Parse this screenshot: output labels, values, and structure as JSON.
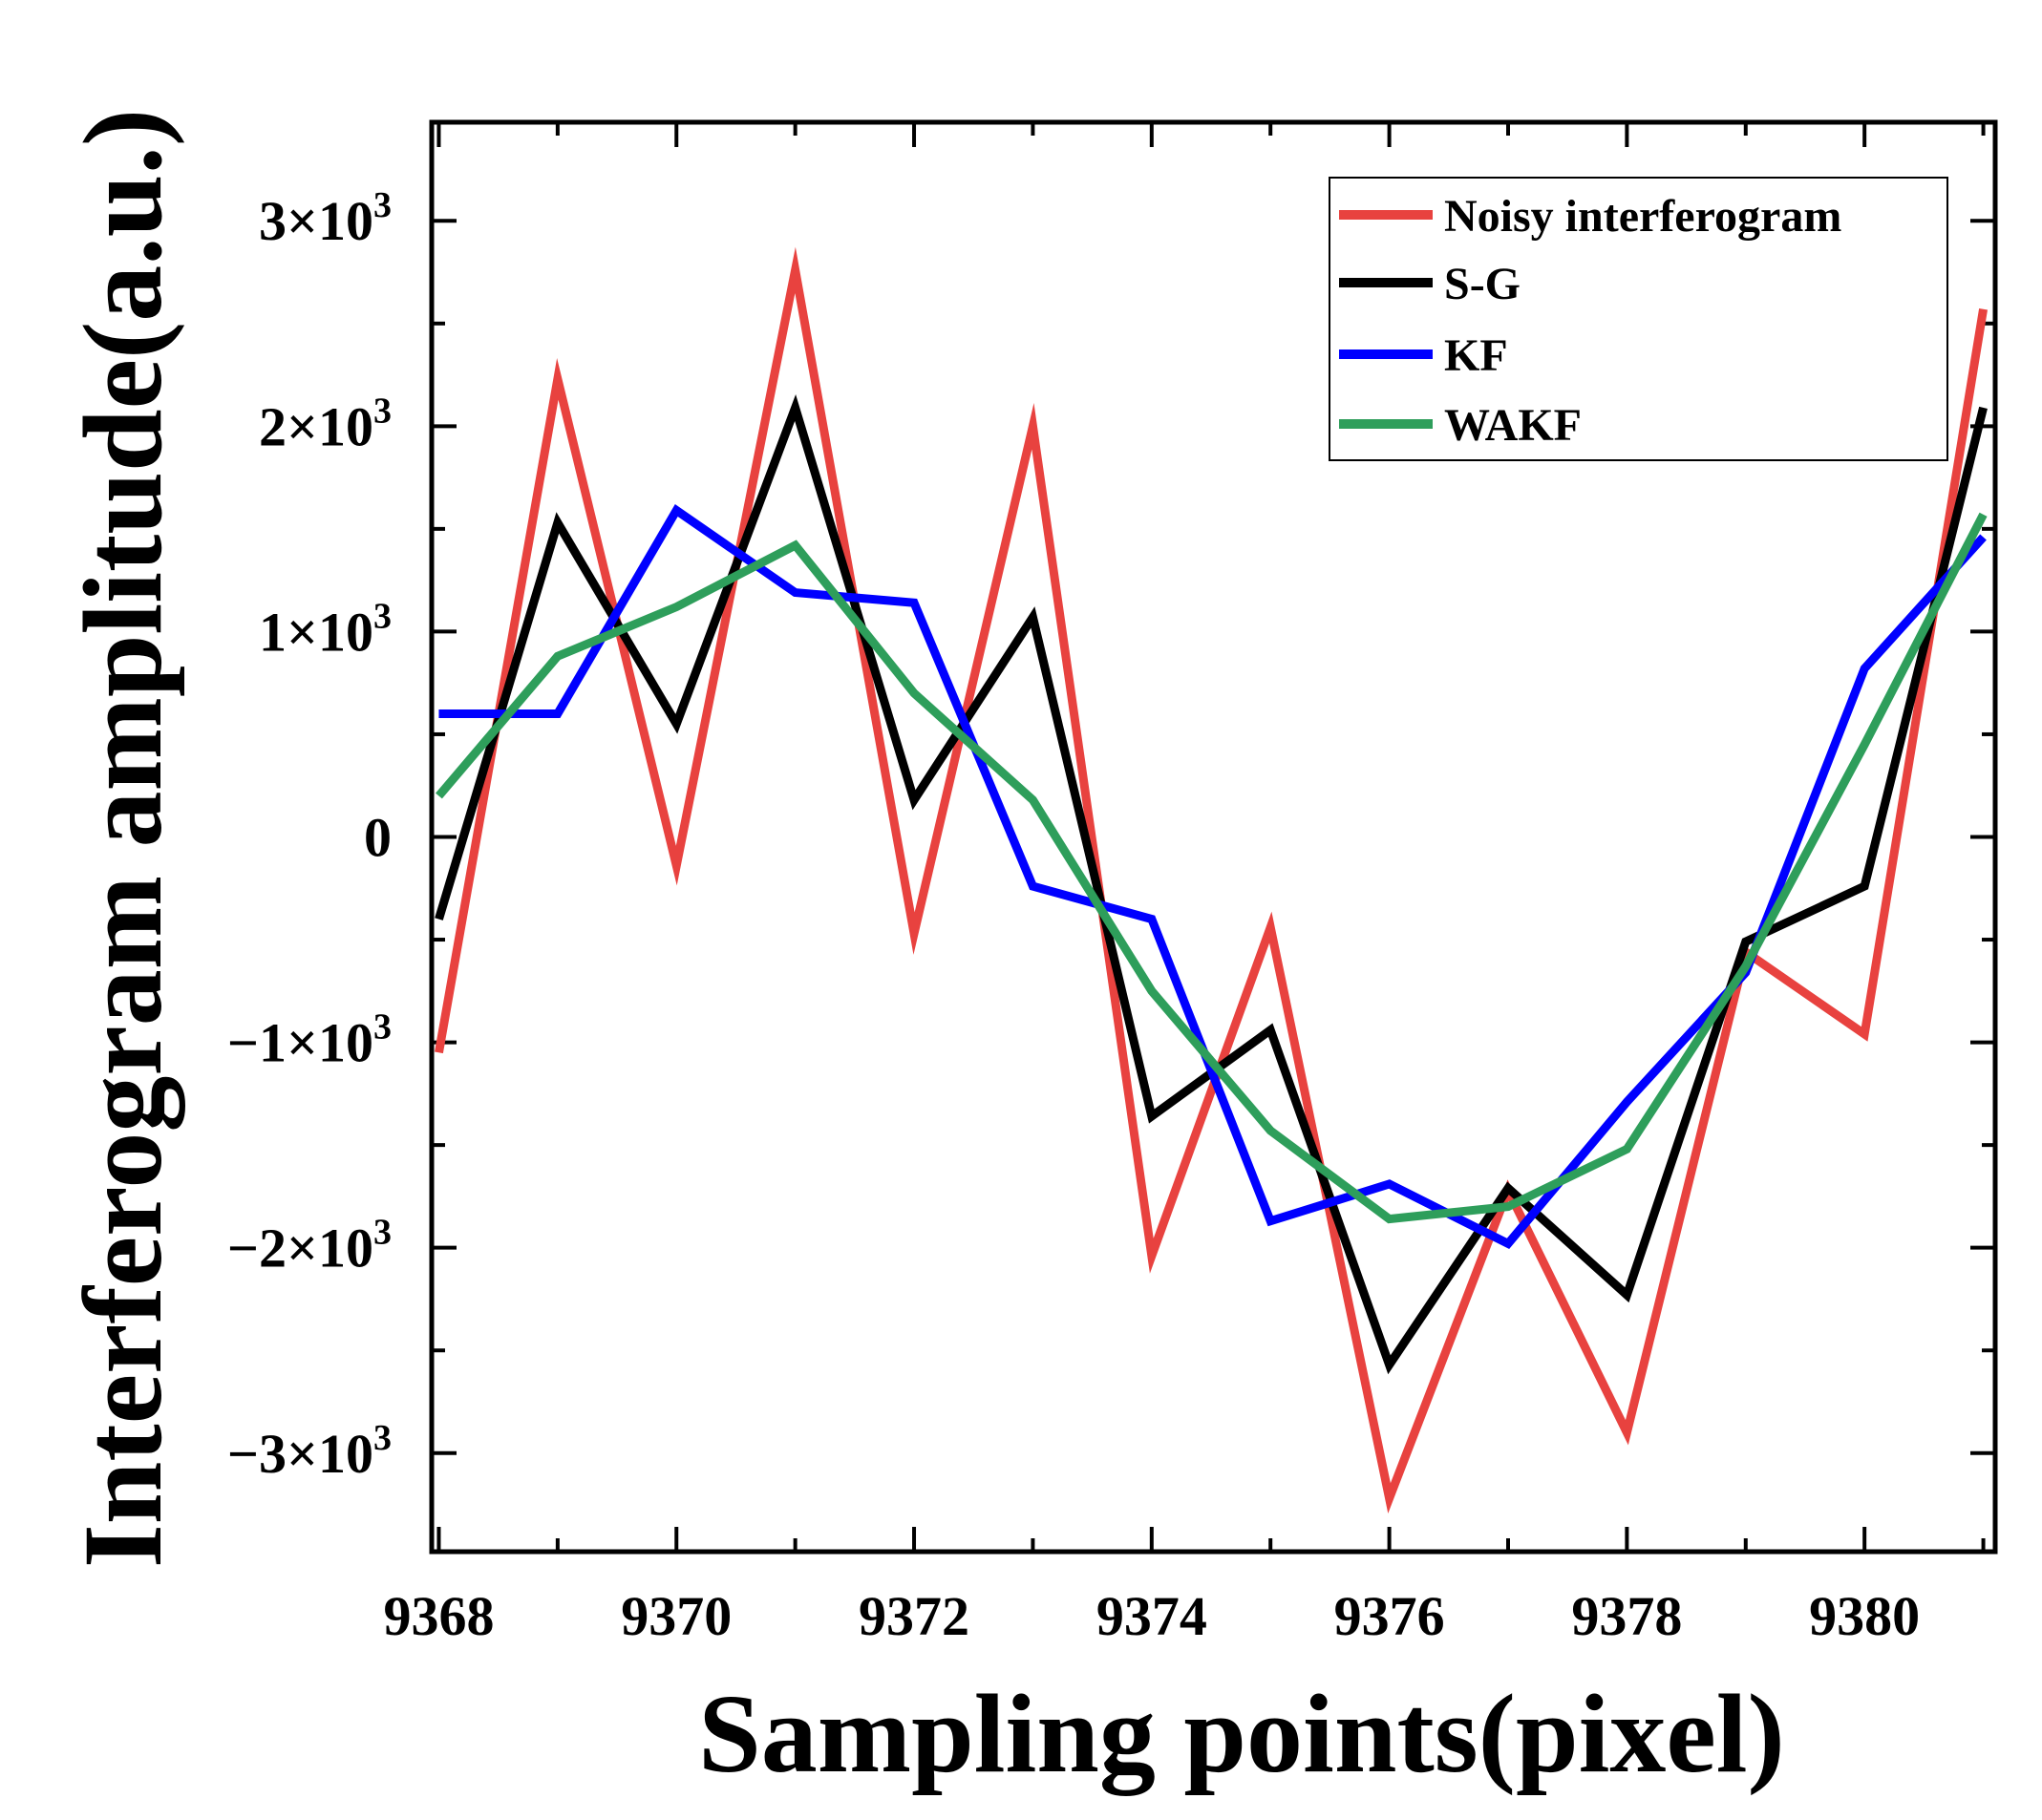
{
  "chart_data": {
    "type": "line",
    "title": "",
    "xlabel": "Sampling points(pixel)",
    "ylabel": "Interferogram amplitude(a.u.)",
    "xlim": [
      9367.94,
      9381.1
    ],
    "ylim": [
      -3480,
      3480
    ],
    "x_ticks": [
      9368,
      9370,
      9372,
      9374,
      9376,
      9378,
      9380
    ],
    "x_tick_labels": [
      "9368",
      "9370",
      "9372",
      "9374",
      "9376",
      "9378",
      "9380"
    ],
    "y_ticks": [
      {
        "value": 3000,
        "mantissa": "3",
        "negative": false
      },
      {
        "value": 2000,
        "mantissa": "2",
        "negative": false
      },
      {
        "value": 1000,
        "mantissa": "1",
        "negative": false
      },
      {
        "value": 0,
        "mantissa": "0",
        "negative": false
      },
      {
        "value": -1000,
        "mantissa": "1",
        "negative": true
      },
      {
        "value": -2000,
        "mantissa": "2",
        "negative": true
      },
      {
        "value": -3000,
        "mantissa": "3",
        "negative": true
      }
    ],
    "y_minor_step": 500,
    "x_minor_step": 1,
    "legend_position": "top-right",
    "x": [
      9368,
      9369,
      9370,
      9371,
      9372,
      9373,
      9374,
      9375,
      9376,
      9377,
      9378,
      9379,
      9380,
      9381
    ],
    "series": [
      {
        "name": "Noisy interferogram",
        "color": "#e8423f",
        "values": [
          -1050,
          2230,
          -140,
          2760,
          -470,
          2000,
          -2040,
          -440,
          -3220,
          -1720,
          -2900,
          -560,
          -960,
          2570
        ]
      },
      {
        "name": "S-G",
        "color": "#000000",
        "values": [
          -400,
          1530,
          550,
          2090,
          180,
          1070,
          -1360,
          -940,
          -2570,
          -1710,
          -2230,
          -510,
          -240,
          2090
        ]
      },
      {
        "name": "KF",
        "color": "#0000ff",
        "values": [
          600,
          600,
          1590,
          1190,
          1140,
          -240,
          -400,
          -1870,
          -1690,
          -1980,
          -1290,
          -660,
          820,
          1460
        ]
      },
      {
        "name": "WAKF",
        "color": "#2e9e5b",
        "values": [
          200,
          880,
          1120,
          1420,
          700,
          180,
          -750,
          -1430,
          -1860,
          -1800,
          -1520,
          -630,
          450,
          1570
        ]
      }
    ]
  }
}
